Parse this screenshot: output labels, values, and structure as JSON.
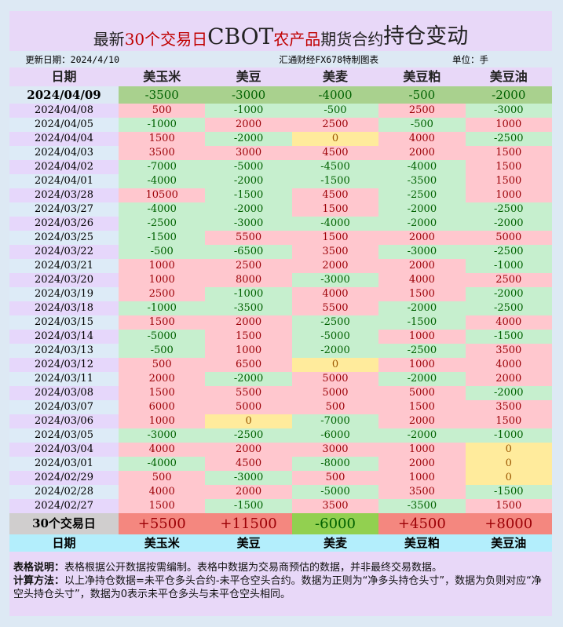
{
  "title": {
    "part1": "最新",
    "part2": "30个交易日",
    "part3": "CBOT",
    "part4": "农产品",
    "part5": "期货合约",
    "part6": "持仓变动"
  },
  "info": {
    "updated": "更新日期：2024/4/10",
    "source": "汇通财经FX678特制图表",
    "unit": "单位：手"
  },
  "columns": [
    "日期",
    "美玉米",
    "美豆",
    "美麦",
    "美豆粕",
    "美豆油"
  ],
  "latest": {
    "date": "2024/04/09",
    "values": [
      "-3500",
      "-3000",
      "-4000",
      "-500",
      "-2000"
    ]
  },
  "rows": [
    {
      "date": "2024/04/08",
      "values": [
        "500",
        "-1000",
        "-500",
        "2500",
        "-3000"
      ]
    },
    {
      "date": "2024/04/05",
      "values": [
        "-1000",
        "2000",
        "2500",
        "-500",
        "1000"
      ]
    },
    {
      "date": "2024/04/04",
      "values": [
        "1500",
        "-2000",
        "0",
        "4000",
        "-2500"
      ]
    },
    {
      "date": "2024/04/03",
      "values": [
        "3500",
        "3000",
        "4500",
        "2000",
        "1500"
      ]
    },
    {
      "date": "2024/04/02",
      "values": [
        "-7000",
        "-5000",
        "-4500",
        "-4000",
        "1500"
      ]
    },
    {
      "date": "2024/04/01",
      "values": [
        "-4000",
        "-2000",
        "-1500",
        "-3500",
        "1500"
      ]
    },
    {
      "date": "2024/03/28",
      "values": [
        "10500",
        "-1500",
        "4500",
        "-2500",
        "1000"
      ]
    },
    {
      "date": "2024/03/27",
      "values": [
        "-4000",
        "-2000",
        "1500",
        "-2000",
        "-2500"
      ]
    },
    {
      "date": "2024/03/26",
      "values": [
        "-2500",
        "-3000",
        "-4000",
        "-2000",
        "-2000"
      ]
    },
    {
      "date": "2024/03/25",
      "values": [
        "-1500",
        "5500",
        "1500",
        "2000",
        "5000"
      ]
    },
    {
      "date": "2024/03/22",
      "values": [
        "-500",
        "-6500",
        "3500",
        "-3000",
        "-2500"
      ]
    },
    {
      "date": "2024/03/21",
      "values": [
        "1000",
        "2500",
        "2000",
        "2000",
        "-1000"
      ]
    },
    {
      "date": "2024/03/20",
      "values": [
        "1000",
        "8000",
        "-3000",
        "4000",
        "2500"
      ]
    },
    {
      "date": "2024/03/19",
      "values": [
        "2500",
        "-1000",
        "4000",
        "1500",
        "-2000"
      ]
    },
    {
      "date": "2024/03/18",
      "values": [
        "-1000",
        "-3500",
        "5500",
        "-2000",
        "-2500"
      ]
    },
    {
      "date": "2024/03/15",
      "values": [
        "1500",
        "2000",
        "-2500",
        "-1500",
        "4000"
      ]
    },
    {
      "date": "2024/03/14",
      "values": [
        "-5000",
        "1500",
        "-5000",
        "1000",
        "-1500"
      ]
    },
    {
      "date": "2024/03/13",
      "values": [
        "-500",
        "1000",
        "-2000",
        "-2500",
        "3500"
      ]
    },
    {
      "date": "2024/03/12",
      "values": [
        "500",
        "6500",
        "0",
        "1000",
        "4000"
      ]
    },
    {
      "date": "2024/03/11",
      "values": [
        "2000",
        "-2000",
        "5000",
        "-2000",
        "2000"
      ]
    },
    {
      "date": "2024/03/08",
      "values": [
        "1500",
        "5500",
        "5000",
        "5000",
        "-2000"
      ]
    },
    {
      "date": "2024/03/07",
      "values": [
        "6000",
        "5000",
        "500",
        "1500",
        "3500"
      ]
    },
    {
      "date": "2024/03/06",
      "values": [
        "1000",
        "0",
        "-7000",
        "2000",
        "1500"
      ]
    },
    {
      "date": "2024/03/05",
      "values": [
        "-3000",
        "-2500",
        "-6000",
        "-2000",
        "-1000"
      ]
    },
    {
      "date": "2024/03/04",
      "values": [
        "4000",
        "2000",
        "3000",
        "1000",
        "0"
      ]
    },
    {
      "date": "2024/03/01",
      "values": [
        "-4000",
        "4500",
        "-8000",
        "2000",
        "0"
      ]
    },
    {
      "date": "2024/02/29",
      "values": [
        "500",
        "-3000",
        "500",
        "1000",
        "0"
      ]
    },
    {
      "date": "2024/02/28",
      "values": [
        "4000",
        "2000",
        "-5000",
        "3500",
        "-1500"
      ]
    },
    {
      "date": "2024/02/27",
      "values": [
        "1500",
        "-1500",
        "3500",
        "-3500",
        "1500"
      ]
    }
  ],
  "summary": {
    "label": "30个交易日",
    "values": [
      "+5500",
      "+11500",
      "-6000",
      "+4500",
      "+8000"
    ]
  },
  "notes": {
    "label1": "表格说明：",
    "text1": "表格根据公开数据按需编制。表格中数据为交易商预估的数据，并非最终交易数据。",
    "label2": "计算方法：",
    "text2": "以上净持仓数据=未平仓多头合约-未平仓空头合约。数据为正则为“净多头持仓头寸”，数据为负则对应“净空头持仓头寸”，数据为0表示未平仓多头与未平仓空头相同。"
  },
  "colors": {
    "positive_bg": "#ffc7ce",
    "positive_text": "#9c0006",
    "negative_bg": "#c6efce",
    "negative_text": "#006100",
    "zero_bg": "#ffeb9c",
    "zero_text": "#9c5700"
  }
}
